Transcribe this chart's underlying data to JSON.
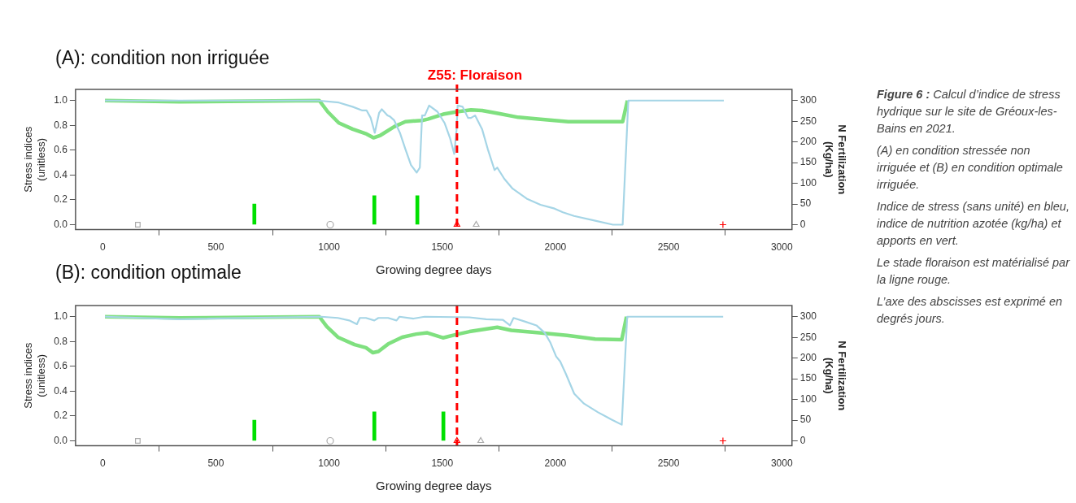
{
  "chart_data": [
    {
      "type": "line",
      "title": "(A): condition non irriguée",
      "xlabel": "Growing degree days",
      "ylabel": "Stress indices\n(unitless)",
      "y2label": "N Fertilization\n(Kg/ha)",
      "xlim": [
        -120,
        3045
      ],
      "xticks": [
        0,
        500,
        1000,
        1500,
        2000,
        2500,
        3000
      ],
      "ylim": [
        -0.04,
        1.09
      ],
      "yticks": [
        {
          "value": 0,
          "label": "0.0"
        },
        {
          "value": 0.2,
          "label": "0.2"
        },
        {
          "value": 0.4,
          "label": "0.4"
        },
        {
          "value": 0.6,
          "label": "0.6"
        },
        {
          "value": 0.8,
          "label": "0.8"
        },
        {
          "value": 1,
          "label": "1.0"
        }
      ],
      "y2lim": [
        -12,
        327
      ],
      "y2ticks": [
        0,
        50,
        100,
        150,
        200,
        250,
        300
      ],
      "series": [
        {
          "color": "#7fe07f",
          "x": [
            10,
            340,
            957,
            994,
            1043,
            1104,
            1166,
            1196,
            1227,
            1288,
            1337,
            1411,
            1436,
            1504,
            1565,
            1627,
            1676,
            1750,
            1836,
            1934,
            2057,
            2180,
            2297,
            2318
          ],
          "values": [
            1.0,
            0.99,
            1.0,
            0.91,
            0.82,
            0.77,
            0.73,
            0.7,
            0.72,
            0.79,
            0.83,
            0.84,
            0.85,
            0.89,
            0.91,
            0.925,
            0.92,
            0.895,
            0.865,
            0.85,
            0.83,
            0.83,
            0.83,
            1.0
          ]
        },
        {
          "color": "#a5d5e6",
          "x": [
            10,
            950,
            1043,
            1104,
            1147,
            1166,
            1184,
            1202,
            1221,
            1233,
            1258,
            1270,
            1288,
            1313,
            1337,
            1362,
            1387,
            1401,
            1411,
            1423,
            1442,
            1479,
            1510,
            1534,
            1553,
            1563,
            1568,
            1590,
            1614,
            1627,
            1645,
            1676,
            1701,
            1731,
            1743,
            1774,
            1811,
            1873,
            1934,
            1996,
            2033,
            2082,
            2180,
            2254,
            2297,
            2322,
            2744
          ],
          "values": [
            1.0,
            1.0,
            0.984,
            0.95,
            0.92,
            0.92,
            0.86,
            0.74,
            0.9,
            0.93,
            0.88,
            0.87,
            0.84,
            0.74,
            0.61,
            0.48,
            0.42,
            0.46,
            0.88,
            0.88,
            0.96,
            0.91,
            0.82,
            0.7,
            0.57,
            0.76,
            0.96,
            0.95,
            0.86,
            0.86,
            0.88,
            0.77,
            0.61,
            0.44,
            0.46,
            0.37,
            0.29,
            0.21,
            0.16,
            0.13,
            0.1,
            0.07,
            0.03,
            0.0,
            0.0,
            1.0,
            1.0
          ]
        },
        {
          "type": "bar",
          "axis": "y2",
          "color": "#00e000",
          "x": [
            670,
            1200,
            1390
          ],
          "values": [
            50,
            70,
            70
          ]
        },
        {
          "type": "scatter",
          "marker": "square",
          "color": "#aaaaaa",
          "x": [
            155
          ],
          "values": [
            0
          ]
        },
        {
          "type": "scatter",
          "marker": "circle",
          "color": "#aaaaaa",
          "x": [
            1005
          ],
          "values": [
            0
          ]
        },
        {
          "type": "scatter",
          "marker": "triangle",
          "colors": [
            "#ff0000",
            "#aaaaaa"
          ],
          "x": [
            1565,
            1650
          ],
          "values": [
            0,
            0
          ]
        },
        {
          "type": "scatter",
          "marker": "cross",
          "color": "#ff0000",
          "x": [
            2740
          ],
          "values": [
            0
          ]
        }
      ],
      "ref_lines": [
        {
          "axis": "x",
          "value": 1565,
          "label": "Z55: Floraison",
          "color": "#ff0000",
          "line_style": "dashed"
        }
      ],
      "annotations": [
        "Figure 6 :",
        "Calcul d’indice de stress hydrique sur le site de Gréoux-les-Bains en 2021.",
        "(A) en condition stressée non irriguée et (B) en condition optimale irriguée.",
        "Indice de stress (sans unité) en bleu, indice de nutrition azotée (kg/ha) et apports en vert.",
        "Le stade floraison est matérialisé par la ligne rouge.",
        "L’axe des abscisses est exprimé en degrés jours."
      ]
    },
    {
      "type": "line",
      "title": "(B): condition optimale",
      "xlabel": "Growing degree days",
      "ylabel": "Stress indices\n(unitless)",
      "y2label": "N Fertilization\n(Kg/ha)",
      "xlim": [
        -120,
        3045
      ],
      "xticks": [
        0,
        500,
        1000,
        1500,
        2000,
        2500,
        3000
      ],
      "ylim": [
        -0.04,
        1.09
      ],
      "yticks": [
        {
          "value": 0,
          "label": "0.0"
        },
        {
          "value": 0.2,
          "label": "0.2"
        },
        {
          "value": 0.4,
          "label": "0.4"
        },
        {
          "value": 0.6,
          "label": "0.6"
        },
        {
          "value": 0.8,
          "label": "0.8"
        },
        {
          "value": 1,
          "label": "1.0"
        }
      ],
      "y2lim": [
        -12,
        327
      ],
      "y2ticks": [
        0,
        50,
        100,
        150,
        200,
        250,
        300
      ],
      "series": [
        {
          "color": "#7fe07f",
          "x": [
            10,
            340,
            957,
            990,
            1039,
            1113,
            1163,
            1194,
            1218,
            1261,
            1323,
            1385,
            1434,
            1503,
            1570,
            1620,
            1743,
            1805,
            1928,
            2052,
            2175,
            2293,
            2314
          ],
          "values": [
            1.0,
            0.99,
            1.0,
            0.92,
            0.835,
            0.775,
            0.75,
            0.71,
            0.72,
            0.78,
            0.835,
            0.86,
            0.87,
            0.83,
            0.86,
            0.88,
            0.915,
            0.89,
            0.87,
            0.85,
            0.82,
            0.815,
            1.0
          ]
        },
        {
          "color": "#a5d5e6",
          "x": [
            10,
            340,
            965,
            1039,
            1089,
            1123,
            1136,
            1163,
            1200,
            1218,
            1261,
            1298,
            1311,
            1373,
            1422,
            1620,
            1694,
            1768,
            1799,
            1815,
            1867,
            1916,
            1953,
            1978,
            2003,
            2021,
            2046,
            2083,
            2126,
            2188,
            2249,
            2293,
            2317,
            2741
          ],
          "values": [
            1.0,
            0.98,
            1.0,
            0.99,
            0.97,
            0.94,
            0.99,
            0.99,
            0.97,
            0.99,
            0.99,
            0.97,
            1.0,
            0.985,
            1.0,
            0.995,
            0.98,
            0.975,
            0.93,
            0.99,
            0.96,
            0.93,
            0.87,
            0.79,
            0.68,
            0.64,
            0.54,
            0.38,
            0.3,
            0.23,
            0.17,
            0.13,
            1.0,
            1.0
          ]
        },
        {
          "type": "bar",
          "axis": "y2",
          "color": "#00e000",
          "x": [
            670,
            1200,
            1505
          ],
          "values": [
            50,
            70,
            70
          ]
        },
        {
          "type": "scatter",
          "marker": "square",
          "color": "#aaaaaa",
          "x": [
            155
          ],
          "values": [
            0
          ]
        },
        {
          "type": "scatter",
          "marker": "circle",
          "color": "#aaaaaa",
          "x": [
            1005
          ],
          "values": [
            0
          ]
        },
        {
          "type": "scatter",
          "marker": "triangle",
          "colors": [
            "#ff0000",
            "#aaaaaa"
          ],
          "x": [
            1565,
            1670
          ],
          "values": [
            0,
            0
          ]
        },
        {
          "type": "scatter",
          "marker": "cross",
          "color": "#ff0000",
          "x": [
            2740
          ],
          "values": [
            0
          ]
        }
      ],
      "ref_lines": [
        {
          "axis": "x",
          "value": 1565,
          "color": "#ff0000",
          "line_style": "dashed"
        }
      ]
    }
  ]
}
